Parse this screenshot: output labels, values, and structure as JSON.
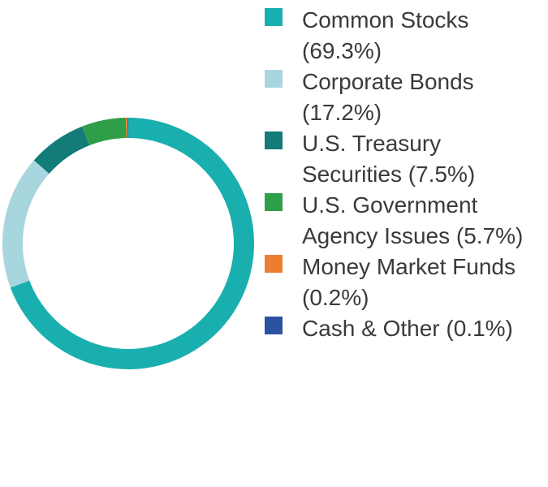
{
  "chart_data": {
    "type": "donut",
    "categories": [
      "Common Stocks (69.3%)",
      "Corporate Bonds (17.2%)",
      "U.S. Treasury Securities (7.5%)",
      "U.S. Government Agency Issues (5.7%)",
      "Money Market Funds (0.2%)",
      "Cash & Other (0.1%)"
    ],
    "values": [
      69.3,
      17.2,
      7.5,
      5.7,
      0.2,
      0.1
    ],
    "colors": [
      "#1aafaf",
      "#a7d6df",
      "#137b78",
      "#2f9e48",
      "#ec7d31",
      "#2c52a0"
    ],
    "legend": "right"
  }
}
